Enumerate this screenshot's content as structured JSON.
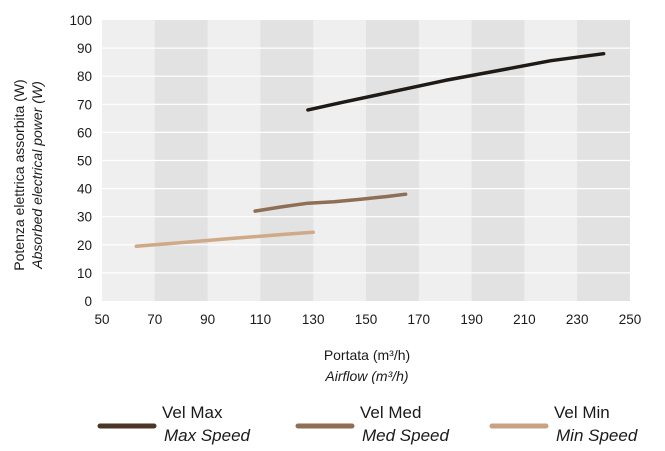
{
  "chart_data": {
    "type": "line",
    "xlabel": "Portata (m³/h)",
    "xlabel_en": "Airflow (m³/h)",
    "ylabel": "Potenza elettrica assorbita (W)",
    "ylabel_en": "Absorbed electrical power (W)",
    "xlim": [
      50,
      250
    ],
    "ylim": [
      0,
      100
    ],
    "x_ticks": [
      50,
      70,
      90,
      110,
      130,
      150,
      170,
      190,
      210,
      230,
      250
    ],
    "y_ticks": [
      0,
      10,
      20,
      30,
      40,
      50,
      60,
      70,
      80,
      90,
      100
    ],
    "grid": "alternating vertical bands",
    "legend_position": "bottom",
    "series": [
      {
        "name": "Vel Max",
        "name_en": "Max Speed",
        "color": "#1e1a17",
        "legend_color": "#4a3526",
        "x": [
          128,
          140,
          160,
          180,
          200,
          220,
          240
        ],
        "y": [
          68,
          70.5,
          74.5,
          78.5,
          82,
          85.5,
          88
        ]
      },
      {
        "name": "Vel Med",
        "name_en": "Med Speed",
        "color": "#8e6e55",
        "legend_color": "#8e6e55",
        "x": [
          108,
          118,
          128,
          138,
          148,
          158,
          165
        ],
        "y": [
          32,
          33.5,
          34.8,
          35.3,
          36.2,
          37.2,
          38
        ]
      },
      {
        "name": "Vel Min",
        "name_en": "Min Speed",
        "color": "#cfa988",
        "legend_color": "#c9a283",
        "x": [
          63,
          80,
          100,
          120,
          130
        ],
        "y": [
          19.5,
          20.8,
          22.3,
          23.8,
          24.5
        ]
      }
    ]
  }
}
